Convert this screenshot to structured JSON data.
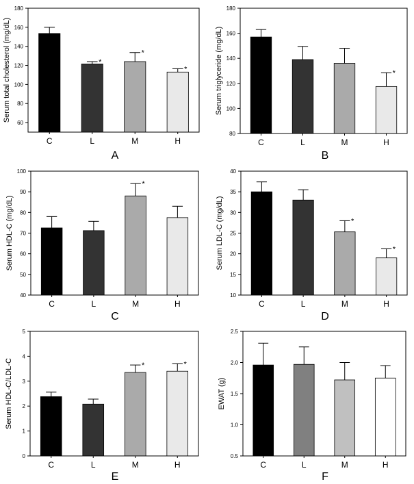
{
  "chart_data": [
    {
      "type": "bar",
      "panel": "A",
      "categories": [
        "C",
        "L",
        "M",
        "H"
      ],
      "values": [
        153.5,
        121.5,
        124,
        113
      ],
      "errors": [
        6.5,
        2.5,
        9.5,
        3.5
      ],
      "significant": [
        false,
        true,
        true,
        true
      ],
      "ylabel": "Serum total cholesterol (mg/dL)",
      "ylim": [
        50,
        180
      ],
      "yticks": [
        60,
        80,
        100,
        120,
        140,
        160,
        180
      ],
      "colors": [
        "#000000",
        "#333333",
        "#aaaaaa",
        "#e9e9e9"
      ]
    },
    {
      "type": "bar",
      "panel": "B",
      "categories": [
        "C",
        "L",
        "M",
        "H"
      ],
      "values": [
        157,
        139,
        136,
        117.5
      ],
      "errors": [
        6,
        10.5,
        12,
        11
      ],
      "significant": [
        false,
        false,
        false,
        true
      ],
      "ylabel": "Serum triglyceride (mg/dL)",
      "ylim": [
        80,
        180
      ],
      "yticks": [
        80,
        100,
        120,
        140,
        160,
        180
      ],
      "colors": [
        "#000000",
        "#333333",
        "#aaaaaa",
        "#e9e9e9"
      ]
    },
    {
      "type": "bar",
      "panel": "C",
      "categories": [
        "C",
        "L",
        "M",
        "H"
      ],
      "values": [
        72.5,
        71.2,
        88,
        77.5
      ],
      "errors": [
        5.5,
        4.5,
        6,
        5.5
      ],
      "significant": [
        false,
        false,
        true,
        false
      ],
      "ylabel": "Serum HDL-C (mg/dL)",
      "ylim": [
        40,
        100
      ],
      "yticks": [
        40,
        50,
        60,
        70,
        80,
        90,
        100
      ],
      "colors": [
        "#000000",
        "#333333",
        "#aaaaaa",
        "#e9e9e9"
      ]
    },
    {
      "type": "bar",
      "panel": "D",
      "categories": [
        "C",
        "L",
        "M",
        "H"
      ],
      "values": [
        35,
        33,
        25.3,
        19
      ],
      "errors": [
        2.4,
        2.5,
        2.7,
        2.2
      ],
      "significant": [
        false,
        false,
        true,
        true
      ],
      "ylabel": "Serum LDL-C (mg/dL)",
      "ylim": [
        10,
        40
      ],
      "yticks": [
        10,
        15,
        20,
        25,
        30,
        35,
        40
      ],
      "colors": [
        "#000000",
        "#333333",
        "#aaaaaa",
        "#e9e9e9"
      ]
    },
    {
      "type": "bar",
      "panel": "E",
      "categories": [
        "C",
        "L",
        "M",
        "H"
      ],
      "values": [
        2.38,
        2.08,
        3.35,
        3.4
      ],
      "errors": [
        0.18,
        0.2,
        0.3,
        0.3
      ],
      "significant": [
        false,
        false,
        true,
        true
      ],
      "ylabel": "Serum HDL-C/LDL-C",
      "ylim": [
        0,
        5
      ],
      "yticks": [
        0,
        1,
        2,
        3,
        4,
        5
      ],
      "colors": [
        "#000000",
        "#333333",
        "#aaaaaa",
        "#e9e9e9"
      ]
    },
    {
      "type": "bar",
      "panel": "F",
      "categories": [
        "C",
        "L",
        "M",
        "H"
      ],
      "values": [
        1.96,
        1.97,
        1.72,
        1.75
      ],
      "errors": [
        0.35,
        0.28,
        0.28,
        0.2
      ],
      "significant": [
        false,
        false,
        false,
        false
      ],
      "ylabel": "EWAT (g)",
      "ylim": [
        0.5,
        2.5
      ],
      "yticks": [
        0.5,
        1.0,
        1.5,
        2.0,
        2.5
      ],
      "yticks_labels": [
        "0.5",
        "1.0",
        "1.5",
        "2.0",
        "2.5"
      ],
      "colors": [
        "#000000",
        "#808080",
        "#c0c0c0",
        "#ffffff"
      ]
    }
  ],
  "significance_marker": "*"
}
